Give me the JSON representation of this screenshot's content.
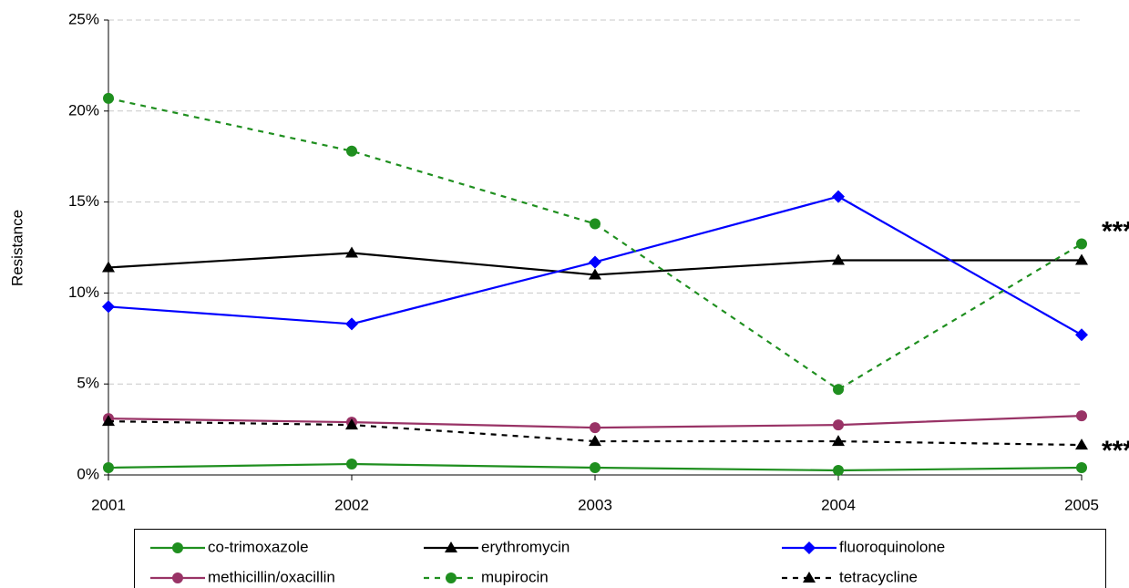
{
  "chart_data": {
    "type": "line",
    "y_label": "Resistance",
    "categories": [
      "2001",
      "2002",
      "2003",
      "2004",
      "2005"
    ],
    "ylim": [
      0,
      25
    ],
    "yticks": [
      {
        "value": 0,
        "label": "0%"
      },
      {
        "value": 5,
        "label": "5%"
      },
      {
        "value": 10,
        "label": "10%"
      },
      {
        "value": 15,
        "label": "15%"
      },
      {
        "value": 20,
        "label": "20%"
      },
      {
        "value": 25,
        "label": "25%"
      }
    ],
    "grid": true,
    "legend": "bottom",
    "series": [
      {
        "name": "co-trimoxazole",
        "color": "#1f8f1f",
        "marker": "circle",
        "dashed": false,
        "values": [
          0.4,
          0.6,
          0.4,
          0.25,
          0.4
        ]
      },
      {
        "name": "erythromycin",
        "color": "#000000",
        "marker": "triangle",
        "dashed": false,
        "values": [
          11.4,
          12.2,
          11.0,
          11.8,
          11.8
        ]
      },
      {
        "name": "fluoroquinolone",
        "color": "#0000ff",
        "marker": "diamond",
        "dashed": false,
        "values": [
          9.25,
          8.3,
          11.7,
          15.3,
          7.7
        ]
      },
      {
        "name": "methicillin/oxacillin",
        "color": "#993366",
        "marker": "circle",
        "dashed": false,
        "values": [
          3.1,
          2.9,
          2.6,
          2.75,
          3.25
        ]
      },
      {
        "name": "mupirocin",
        "color": "#1f8f1f",
        "marker": "circle",
        "dashed": true,
        "values": [
          20.7,
          17.8,
          13.8,
          4.7,
          12.7
        ]
      },
      {
        "name": "tetracycline",
        "color": "#000000",
        "marker": "triangle",
        "dashed": true,
        "values": [
          2.95,
          2.75,
          1.85,
          1.85,
          1.65
        ]
      }
    ],
    "annotations": [
      {
        "text": "***",
        "color": "#1f8f1f"
      },
      {
        "text": "***",
        "color": "#000000"
      }
    ]
  }
}
